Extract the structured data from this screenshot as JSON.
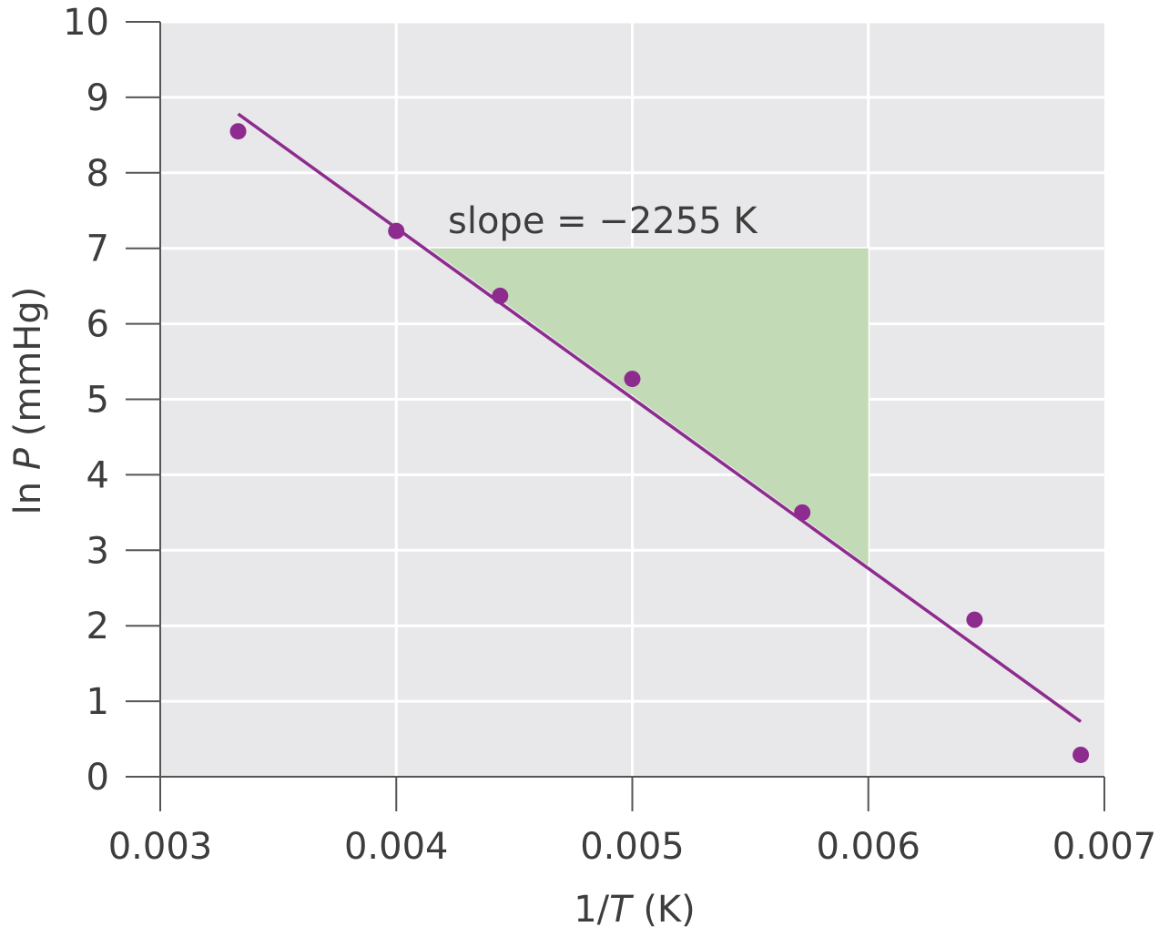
{
  "chart_data": {
    "type": "scatter",
    "x_axis": {
      "label_parts": [
        "1/",
        "T",
        " (K)"
      ],
      "range": [
        0.003,
        0.007
      ],
      "ticks": [
        0.003,
        0.004,
        0.005,
        0.006,
        0.007
      ],
      "tick_labels": [
        "0.003",
        "0.004",
        "0.005",
        "0.006",
        "0.007"
      ]
    },
    "y_axis": {
      "label_parts": [
        "ln ",
        "P",
        " (mmHg)"
      ],
      "range": [
        0,
        10
      ],
      "ticks": [
        0,
        1,
        2,
        3,
        4,
        5,
        6,
        7,
        8,
        9,
        10
      ],
      "tick_labels": [
        "0",
        "1",
        "2",
        "3",
        "4",
        "5",
        "6",
        "7",
        "8",
        "9",
        "10"
      ]
    },
    "grid": true,
    "points": [
      {
        "x": 0.00333,
        "y": 8.55
      },
      {
        "x": 0.004,
        "y": 7.23
      },
      {
        "x": 0.00444,
        "y": 6.37
      },
      {
        "x": 0.005,
        "y": 5.27
      },
      {
        "x": 0.00572,
        "y": 3.5
      },
      {
        "x": 0.00645,
        "y": 2.08
      },
      {
        "x": 0.0069,
        "y": 0.29
      }
    ],
    "fit_line": {
      "x": [
        0.00333,
        0.0069
      ],
      "y": [
        8.78,
        0.73
      ]
    },
    "slope_triangle": [
      [
        0.00414,
        7.0
      ],
      [
        0.006,
        7.0
      ],
      [
        0.006,
        2.8
      ]
    ],
    "annotation": "slope = −2255 K",
    "colors": {
      "plot_background": "#e8e8ea",
      "grid": "#ffffff",
      "points": "#8e2b8e",
      "fit_line": "#8e2b8e",
      "triangle": "#c2dbb6",
      "axis": "#555555",
      "text": "#3d3d3d"
    }
  }
}
